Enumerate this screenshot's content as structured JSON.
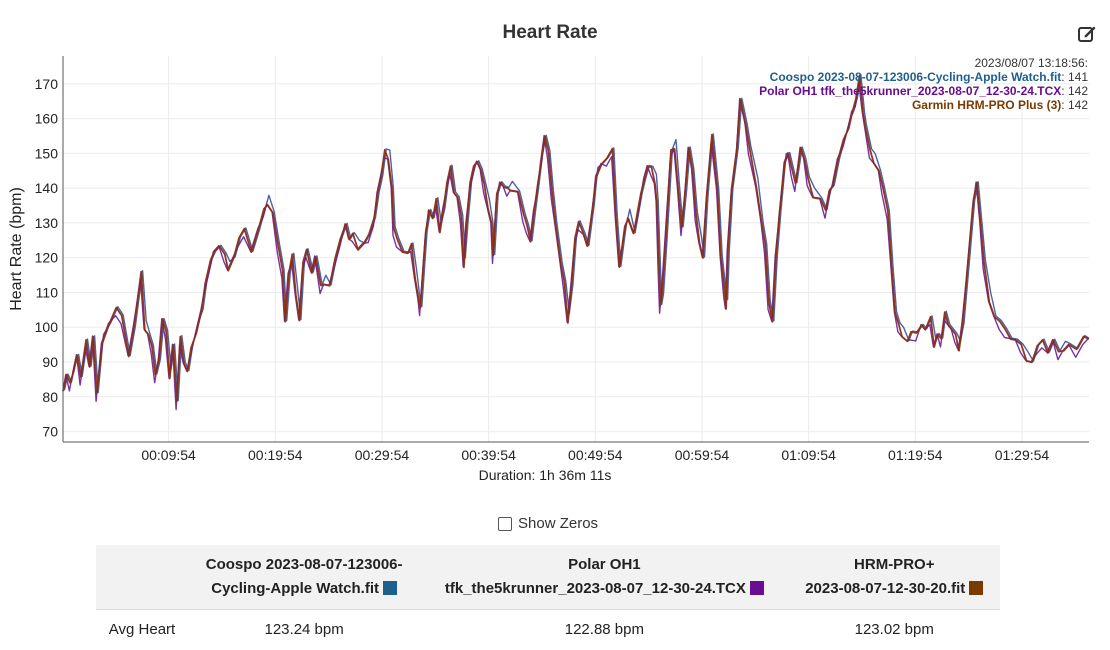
{
  "chart_data": {
    "type": "line",
    "title": "Heart Rate",
    "ylabel": "Heart Rate (bpm)",
    "xlabel": "Duration: 1h 36m 11s",
    "ylim": [
      67,
      178
    ],
    "y_ticks": [
      70,
      80,
      90,
      100,
      110,
      120,
      130,
      140,
      150,
      160,
      170
    ],
    "x_range_seconds": [
      0,
      5771
    ],
    "x_ticks": [
      {
        "t": 594,
        "label": "00:09:54"
      },
      {
        "t": 1194,
        "label": "00:19:54"
      },
      {
        "t": 1794,
        "label": "00:29:54"
      },
      {
        "t": 2394,
        "label": "00:39:54"
      },
      {
        "t": 2994,
        "label": "00:49:54"
      },
      {
        "t": 3594,
        "label": "00:59:54"
      },
      {
        "t": 4194,
        "label": "01:09:54"
      },
      {
        "t": 4794,
        "label": "01:19:54"
      },
      {
        "t": 5394,
        "label": "01:29:54"
      }
    ],
    "grid": true,
    "legend_position": "top-right",
    "timestamp": "2023/08/07 13:18:56:",
    "series": [
      {
        "name": "Coospo 2023-08-07-123006-Cycling-Apple Watch.fit",
        "current_value": 141,
        "color": "#1f5f8b",
        "line_color": "#3a4f9e"
      },
      {
        "name": "Polar OH1 tfk_the5krunner_2023-08-07_12-30-24.TCX",
        "current_value": 142,
        "color": "#6a0d91",
        "line_color": "#6a1b9a"
      },
      {
        "name": "Garmin HRM-PRO Plus (3)",
        "current_value": 142,
        "color": "#7a3a00",
        "line_color": "#8b2e0e"
      }
    ],
    "points": [
      [
        0,
        82
      ],
      [
        20,
        86
      ],
      [
        40,
        83
      ],
      [
        60,
        88
      ],
      [
        80,
        92
      ],
      [
        100,
        85
      ],
      [
        130,
        95
      ],
      [
        150,
        89
      ],
      [
        170,
        97
      ],
      [
        190,
        80
      ],
      [
        220,
        96
      ],
      [
        260,
        101
      ],
      [
        300,
        105
      ],
      [
        330,
        102
      ],
      [
        370,
        92
      ],
      [
        400,
        100
      ],
      [
        440,
        115
      ],
      [
        460,
        100
      ],
      [
        480,
        98
      ],
      [
        500,
        94
      ],
      [
        520,
        85
      ],
      [
        540,
        91
      ],
      [
        560,
        102
      ],
      [
        580,
        98
      ],
      [
        600,
        86
      ],
      [
        620,
        95
      ],
      [
        640,
        78
      ],
      [
        660,
        96
      ],
      [
        680,
        90
      ],
      [
        700,
        87
      ],
      [
        720,
        93
      ],
      [
        750,
        99
      ],
      [
        780,
        105
      ],
      [
        800,
        112
      ],
      [
        830,
        118
      ],
      [
        850,
        122
      ],
      [
        880,
        123
      ],
      [
        910,
        120
      ],
      [
        930,
        117
      ],
      [
        960,
        120
      ],
      [
        990,
        125
      ],
      [
        1020,
        127
      ],
      [
        1060,
        122
      ],
      [
        1100,
        128
      ],
      [
        1130,
        133
      ],
      [
        1150,
        136
      ],
      [
        1180,
        133
      ],
      [
        1210,
        123
      ],
      [
        1235,
        115
      ],
      [
        1250,
        102
      ],
      [
        1270,
        115
      ],
      [
        1290,
        120
      ],
      [
        1310,
        110
      ],
      [
        1330,
        102
      ],
      [
        1350,
        118
      ],
      [
        1370,
        121
      ],
      [
        1400,
        116
      ],
      [
        1420,
        120
      ],
      [
        1450,
        111
      ],
      [
        1470,
        113
      ],
      [
        1500,
        112
      ],
      [
        1530,
        119
      ],
      [
        1560,
        124
      ],
      [
        1590,
        130
      ],
      [
        1610,
        125
      ],
      [
        1630,
        126
      ],
      [
        1660,
        123
      ],
      [
        1690,
        124
      ],
      [
        1720,
        126
      ],
      [
        1750,
        130
      ],
      [
        1770,
        139
      ],
      [
        1790,
        143
      ],
      [
        1810,
        150
      ],
      [
        1830,
        149
      ],
      [
        1850,
        140
      ],
      [
        1860,
        128
      ],
      [
        1880,
        124
      ],
      [
        1910,
        122
      ],
      [
        1940,
        121
      ],
      [
        1960,
        123
      ],
      [
        1980,
        115
      ],
      [
        2000,
        108
      ],
      [
        2010,
        105
      ],
      [
        2040,
        126
      ],
      [
        2060,
        134
      ],
      [
        2080,
        131
      ],
      [
        2100,
        136
      ],
      [
        2120,
        128
      ],
      [
        2140,
        134
      ],
      [
        2160,
        141
      ],
      [
        2180,
        145
      ],
      [
        2200,
        139
      ],
      [
        2220,
        137
      ],
      [
        2240,
        131
      ],
      [
        2255,
        118
      ],
      [
        2270,
        130
      ],
      [
        2290,
        141
      ],
      [
        2310,
        145
      ],
      [
        2330,
        148
      ],
      [
        2350,
        145
      ],
      [
        2370,
        140
      ],
      [
        2390,
        135
      ],
      [
        2410,
        130
      ],
      [
        2420,
        120
      ],
      [
        2440,
        137
      ],
      [
        2460,
        142
      ],
      [
        2480,
        140
      ],
      [
        2500,
        139
      ],
      [
        2520,
        140
      ],
      [
        2560,
        139
      ],
      [
        2590,
        132
      ],
      [
        2610,
        128
      ],
      [
        2630,
        125
      ],
      [
        2650,
        133
      ],
      [
        2670,
        140
      ],
      [
        2690,
        148
      ],
      [
        2710,
        155
      ],
      [
        2730,
        150
      ],
      [
        2750,
        138
      ],
      [
        2770,
        130
      ],
      [
        2800,
        118
      ],
      [
        2820,
        112
      ],
      [
        2840,
        102
      ],
      [
        2860,
        112
      ],
      [
        2880,
        125
      ],
      [
        2900,
        129
      ],
      [
        2930,
        127
      ],
      [
        2950,
        123
      ],
      [
        2980,
        134
      ],
      [
        3000,
        144
      ],
      [
        3030,
        147
      ],
      [
        3060,
        148
      ],
      [
        3090,
        150
      ],
      [
        3110,
        132
      ],
      [
        3130,
        117
      ],
      [
        3160,
        128
      ],
      [
        3180,
        132
      ],
      [
        3210,
        127
      ],
      [
        3230,
        132
      ],
      [
        3250,
        137
      ],
      [
        3270,
        143
      ],
      [
        3290,
        146
      ],
      [
        3310,
        145
      ],
      [
        3330,
        142
      ],
      [
        3340,
        136
      ],
      [
        3350,
        120
      ],
      [
        3360,
        105
      ],
      [
        3370,
        110
      ],
      [
        3390,
        125
      ],
      [
        3420,
        150
      ],
      [
        3440,
        152
      ],
      [
        3460,
        140
      ],
      [
        3480,
        128
      ],
      [
        3500,
        138
      ],
      [
        3520,
        152
      ],
      [
        3540,
        145
      ],
      [
        3560,
        132
      ],
      [
        3580,
        125
      ],
      [
        3600,
        120
      ],
      [
        3620,
        137
      ],
      [
        3650,
        154
      ],
      [
        3680,
        140
      ],
      [
        3700,
        120
      ],
      [
        3720,
        110
      ],
      [
        3730,
        106
      ],
      [
        3740,
        122
      ],
      [
        3760,
        139
      ],
      [
        3790,
        150
      ],
      [
        3810,
        166
      ],
      [
        3840,
        158
      ],
      [
        3860,
        151
      ],
      [
        3900,
        141
      ],
      [
        3930,
        130
      ],
      [
        3950,
        123
      ],
      [
        3970,
        106
      ],
      [
        3990,
        102
      ],
      [
        4010,
        120
      ],
      [
        4030,
        132
      ],
      [
        4060,
        148
      ],
      [
        4080,
        150
      ],
      [
        4100,
        145
      ],
      [
        4120,
        140
      ],
      [
        4150,
        152
      ],
      [
        4170,
        148
      ],
      [
        4190,
        142
      ],
      [
        4220,
        138
      ],
      [
        4260,
        137
      ],
      [
        4290,
        133
      ],
      [
        4310,
        138
      ],
      [
        4330,
        141
      ],
      [
        4360,
        148
      ],
      [
        4390,
        153
      ],
      [
        4420,
        158
      ],
      [
        4440,
        162
      ],
      [
        4460,
        165
      ],
      [
        4480,
        171
      ],
      [
        4500,
        162
      ],
      [
        4510,
        158
      ],
      [
        4540,
        150
      ],
      [
        4560,
        148
      ],
      [
        4590,
        145
      ],
      [
        4610,
        140
      ],
      [
        4640,
        132
      ],
      [
        4660,
        118
      ],
      [
        4680,
        104
      ],
      [
        4700,
        100
      ],
      [
        4720,
        98
      ],
      [
        4750,
        96
      ],
      [
        4770,
        98
      ],
      [
        4800,
        97
      ],
      [
        4830,
        101
      ],
      [
        4850,
        99
      ],
      [
        4880,
        102
      ],
      [
        4900,
        95
      ],
      [
        4920,
        98
      ],
      [
        4940,
        96
      ],
      [
        4960,
        103
      ],
      [
        4980,
        101
      ],
      [
        5000,
        99
      ],
      [
        5020,
        97
      ],
      [
        5040,
        94
      ],
      [
        5060,
        101
      ],
      [
        5090,
        118
      ],
      [
        5120,
        135
      ],
      [
        5140,
        142
      ],
      [
        5160,
        130
      ],
      [
        5180,
        118
      ],
      [
        5210,
        108
      ],
      [
        5240,
        103
      ],
      [
        5270,
        101
      ],
      [
        5300,
        98
      ],
      [
        5330,
        97
      ],
      [
        5360,
        96
      ],
      [
        5390,
        94
      ],
      [
        5420,
        91
      ],
      [
        5450,
        90
      ],
      [
        5480,
        94
      ],
      [
        5510,
        95
      ],
      [
        5540,
        93
      ],
      [
        5570,
        96
      ],
      [
        5600,
        92
      ],
      [
        5630,
        94
      ],
      [
        5660,
        95
      ],
      [
        5700,
        93
      ],
      [
        5740,
        96
      ],
      [
        5771,
        97
      ]
    ]
  },
  "controls": {
    "show_zeros_label": "Show Zeros",
    "edit_icon": "edit-icon"
  },
  "summary_table": {
    "columns": [
      {
        "line1": "Coospo 2023-08-07-123006-",
        "line2": "Cycling-Apple Watch.fit",
        "color": "#1f5f8b"
      },
      {
        "line1": "Polar OH1",
        "line2": "tfk_the5krunner_2023-08-07_12-30-24.TCX",
        "color": "#6a0d91"
      },
      {
        "line1": "HRM-PRO+",
        "line2": "2023-08-07-12-30-20.fit",
        "color": "#7a3a00"
      }
    ],
    "rows": [
      {
        "label": "Avg Heart",
        "values": [
          "123.24 bpm",
          "122.88 bpm",
          "123.02 bpm"
        ]
      }
    ]
  }
}
